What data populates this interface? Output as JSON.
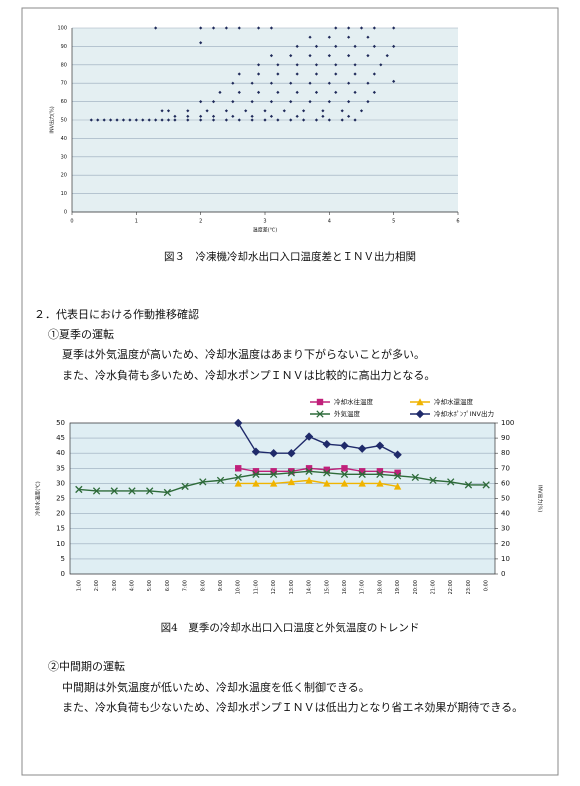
{
  "chart_data": [
    {
      "type": "scatter",
      "xlabel": "温度差(℃)",
      "ylabel": "INV出力(%)",
      "color": "#1f2a5a",
      "xlim": [
        0,
        6
      ],
      "xticks": [
        0,
        1,
        2,
        3,
        4,
        5,
        6
      ],
      "ylim": [
        0,
        100
      ],
      "yticks": [
        0,
        10,
        20,
        30,
        40,
        50,
        60,
        70,
        80,
        90,
        100
      ],
      "grid": true,
      "x": [
        0.3,
        0.4,
        0.5,
        0.6,
        0.7,
        0.8,
        0.9,
        1.0,
        1.1,
        1.2,
        1.3,
        1.4,
        1.5,
        1.6,
        1.8,
        2.0,
        2.2,
        2.4,
        2.6,
        2.8,
        3.0,
        3.2,
        3.4,
        3.6,
        3.8,
        4.0,
        4.2,
        4.4,
        1.6,
        1.8,
        2.0,
        2.2,
        2.5,
        2.8,
        3.1,
        3.5,
        3.9,
        4.3,
        1.4,
        1.5,
        1.8,
        2.1,
        2.4,
        2.7,
        3.0,
        3.3,
        3.6,
        3.9,
        4.2,
        4.5,
        2.0,
        2.2,
        2.5,
        2.8,
        3.1,
        3.4,
        3.7,
        4.0,
        4.3,
        4.6,
        2.3,
        2.6,
        2.9,
        3.2,
        3.5,
        3.8,
        4.1,
        4.4,
        4.7,
        2.5,
        2.8,
        3.1,
        3.4,
        3.7,
        4.0,
        4.3,
        4.6,
        2.6,
        2.9,
        3.2,
        3.5,
        3.8,
        4.1,
        4.4,
        4.7,
        2.9,
        3.2,
        3.5,
        3.8,
        4.1,
        4.4,
        4.8,
        3.1,
        3.4,
        3.7,
        4.0,
        4.3,
        4.6,
        4.9,
        3.5,
        3.8,
        4.1,
        4.4,
        4.7,
        5.0,
        3.7,
        4.0,
        4.3,
        4.6,
        1.3,
        2.0,
        2.2,
        2.4,
        2.6,
        2.9,
        3.1,
        4.1,
        4.3,
        4.5,
        4.7,
        5.0,
        2.0,
        5.0
      ],
      "y": [
        50,
        50,
        50,
        50,
        50,
        50,
        50,
        50,
        50,
        50,
        50,
        50,
        50,
        50,
        50,
        50,
        50,
        50,
        50,
        50,
        50,
        50,
        50,
        50,
        50,
        50,
        50,
        50,
        52,
        52,
        52,
        52,
        52,
        52,
        52,
        52,
        52,
        52,
        55,
        55,
        55,
        55,
        55,
        55,
        55,
        55,
        55,
        55,
        55,
        55,
        60,
        60,
        60,
        60,
        60,
        60,
        60,
        60,
        60,
        60,
        65,
        65,
        65,
        65,
        65,
        65,
        65,
        65,
        65,
        70,
        70,
        70,
        70,
        70,
        70,
        70,
        70,
        75,
        75,
        75,
        75,
        75,
        75,
        75,
        75,
        80,
        80,
        80,
        80,
        80,
        80,
        80,
        85,
        85,
        85,
        85,
        85,
        85,
        85,
        90,
        90,
        90,
        90,
        90,
        90,
        95,
        95,
        95,
        95,
        100,
        100,
        100,
        100,
        100,
        100,
        100,
        100,
        100,
        100,
        100,
        100,
        92,
        71
      ]
    },
    {
      "type": "line",
      "ylabel": "冷却水温度(℃)",
      "y2label": "INV出力(%)",
      "categories": [
        "1:00",
        "2:00",
        "3:00",
        "4:00",
        "5:00",
        "6:00",
        "7:00",
        "8:00",
        "9:00",
        "10:00",
        "11:00",
        "12:00",
        "13:00",
        "14:00",
        "15:00",
        "16:00",
        "17:00",
        "18:00",
        "19:00",
        "20:00",
        "21:00",
        "22:00",
        "23:00",
        "0:00"
      ],
      "ylim": [
        0,
        50
      ],
      "yticks": [
        0,
        5,
        10,
        15,
        20,
        25,
        30,
        35,
        40,
        45,
        50
      ],
      "y2lim": [
        0,
        100
      ],
      "y2ticks": [
        0,
        10,
        20,
        30,
        40,
        50,
        60,
        70,
        80,
        90,
        100
      ],
      "grid": true,
      "series": [
        {
          "name": "冷却水往温度",
          "color": "#c0207a",
          "marker": "square",
          "values": [
            null,
            null,
            null,
            null,
            null,
            null,
            null,
            null,
            null,
            35,
            34,
            34,
            34,
            35,
            34.5,
            35,
            34,
            34,
            33.5,
            null,
            null,
            null,
            null,
            null
          ]
        },
        {
          "name": "冷却水還温度",
          "color": "#f0b400",
          "marker": "triangle",
          "values": [
            null,
            null,
            null,
            null,
            null,
            null,
            null,
            null,
            null,
            30,
            30,
            30,
            30.5,
            31,
            30,
            30,
            30,
            30,
            29,
            null,
            null,
            null,
            null,
            null
          ]
        },
        {
          "name": "外気温度",
          "color": "#2e6b3a",
          "marker": "cross",
          "values": [
            28,
            27.5,
            27.5,
            27.5,
            27.5,
            27,
            29,
            30.5,
            31,
            32,
            33,
            33,
            33.5,
            34,
            33.5,
            33,
            33,
            33,
            32.5,
            32,
            31,
            30.5,
            29.5,
            29.5
          ]
        },
        {
          "name": "冷却水ﾎﾟﾝﾌﾟINV出力",
          "color": "#1f2a6a",
          "marker": "diamond",
          "axis": "y2",
          "values": [
            null,
            null,
            null,
            null,
            null,
            null,
            null,
            null,
            null,
            100,
            81,
            80,
            80,
            91,
            86,
            85,
            83,
            85,
            79,
            null,
            null,
            null,
            null,
            null
          ]
        }
      ]
    }
  ],
  "document": {
    "figure3_caption": "図３　冷凍機冷却水出口入口温度差とＩＮＶ出力相関",
    "section_title": "２．代表日における作動推移確認",
    "summer": {
      "heading": "①夏季の運転",
      "lines": [
        "夏季は外気温度が高いため、冷却水温度はあまり下がらないことが多い。",
        "また、冷水負荷も多いため、冷却水ポンプＩＮＶは比較的に高出力となる。"
      ]
    },
    "figure4_caption": "図4　夏季の冷却水出口入口温度と外気温度のトレンド",
    "mid": {
      "heading": "②中間期の運転",
      "lines": [
        "中間期は外気温度が低いため、冷却水温度を低く制御できる。",
        "また、冷水負荷も少ないため、冷却水ポンプＩＮＶは低出力となり省エネ効果が期待できる。"
      ]
    }
  }
}
